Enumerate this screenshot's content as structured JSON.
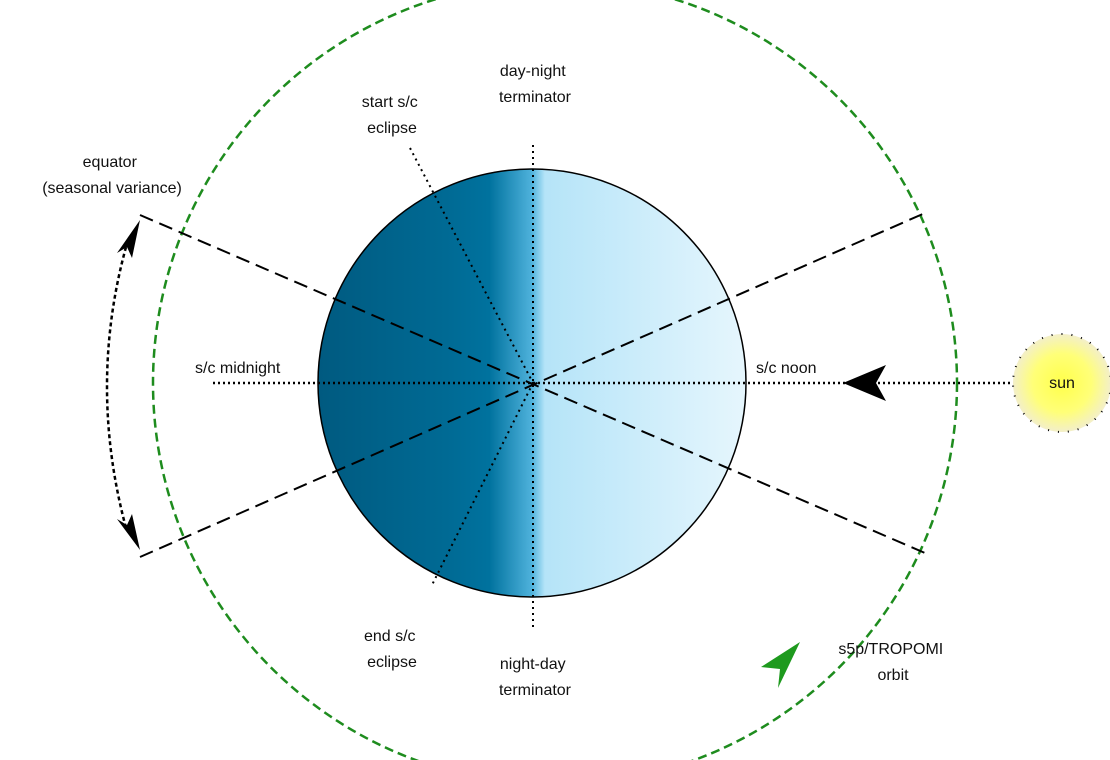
{
  "labels": {
    "day_night_1": "day-night",
    "day_night_2": "terminator",
    "start_1": "start s/c",
    "start_2": "eclipse",
    "equator_1": "equator",
    "equator_2": "(seasonal variance)",
    "midnight": "s/c midnight",
    "noon": "s/c noon",
    "sun": "sun",
    "end_1": "end s/c",
    "end_2": "eclipse",
    "night_day_1": "night-day",
    "night_day_2": "terminator",
    "orbit_1": "s5p/TROPOMI",
    "orbit_2": "orbit"
  },
  "colors": {
    "earth_dark": "#005a80",
    "earth_mid": "#006e9a",
    "earth_light": "#bfe8fa",
    "earth_lightest": "#e6f6fd",
    "orbit": "#1e8c1e",
    "sun_core": "#ffff5a",
    "sun_edge": "#f5f0c8",
    "line": "#000000"
  },
  "icons": {
    "sun": "sun-icon",
    "earth": "earth-icon",
    "orbit_arrow": "orbit-direction-arrow-icon",
    "sunlight_arrow": "sunlight-arrow-icon",
    "equator_arrow": "double-headed-arrow-icon"
  }
}
